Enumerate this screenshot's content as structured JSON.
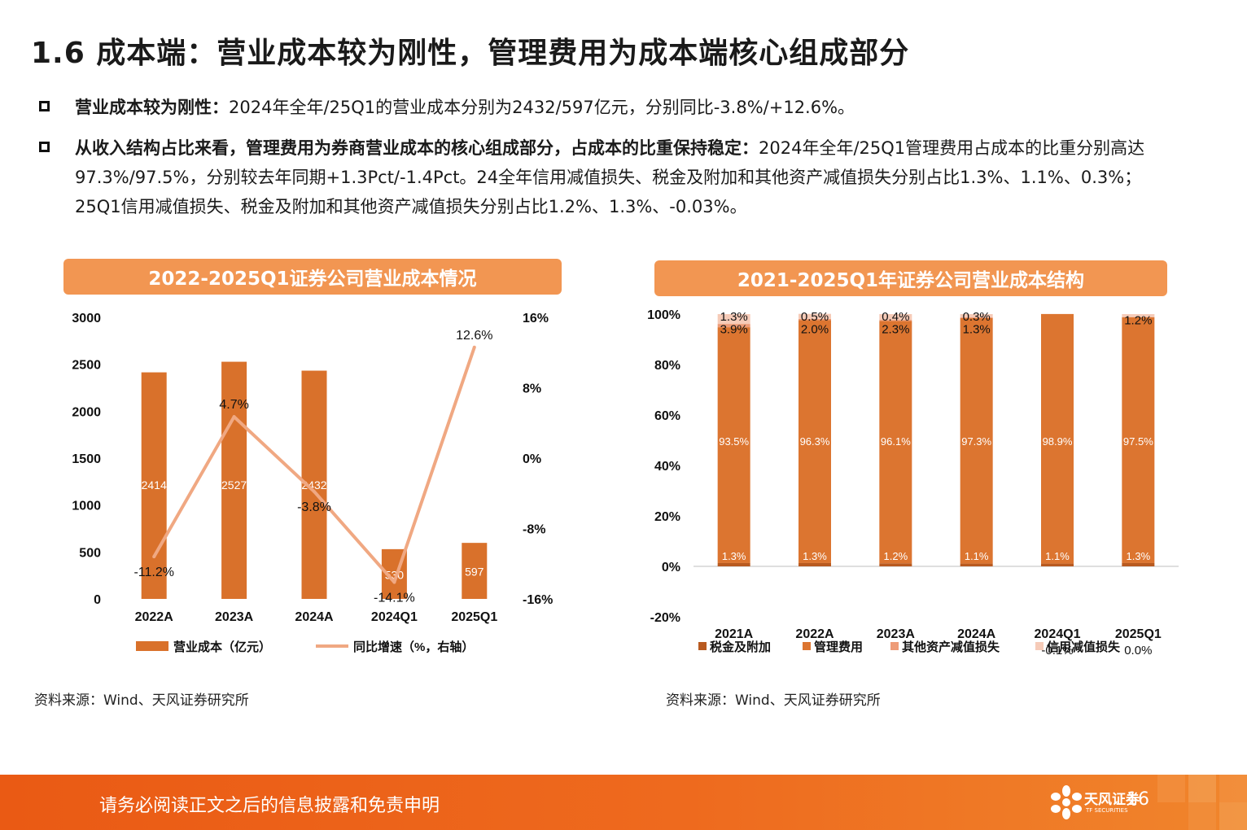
{
  "page": {
    "title": "1.6 成本端：营业成本较为刚性，管理费用为成本端核心组成部分",
    "bullets": [
      {
        "bold": "营业成本较为刚性：",
        "text": "2024年全年/25Q1的营业成本分别为2432/597亿元，分别同比-3.8%/+12.6%。"
      },
      {
        "bold": "从收入结构占比来看，管理费用为券商营业成本的核心组成部分，占成本的比重保持稳定：",
        "text": "2024年全年/25Q1管理费用占成本的比重分别高达97.3%/97.5%，分别较去年同期+1.3Pct/-1.4Pct。24全年信用减值损失、税金及附加和其他资产减值损失分别占比1.3%、1.1%、0.3%；25Q1信用减值损失、税金及附加和其他资产减值损失分别占比1.2%、1.3%、-0.03%。"
      }
    ],
    "source_left": "资料来源：Wind、天风证券研究所",
    "source_right": "资料来源：Wind、天风证券研究所",
    "footer_text": "请务必阅读正文之后的信息披露和免责申明",
    "brand": "天风证券",
    "brand_en": "TF SECURITIES",
    "page_number": "16",
    "colors": {
      "accent": "#f29652",
      "bar": "#d9712b",
      "line": "#f0a882",
      "tax": "#b85a20",
      "mgmt": "#dc7530",
      "other_asset": "#ee9c78",
      "credit": "#f6cbb8",
      "footer": "#ea5a14"
    }
  },
  "chart_data": [
    {
      "type": "bar",
      "title": "2022-2025Q1证券公司营业成本情况",
      "categories": [
        "2022A",
        "2023A",
        "2024A",
        "2024Q1",
        "2025Q1"
      ],
      "series": [
        {
          "name": "营业成本（亿元）",
          "type": "bar",
          "axis": "left",
          "values": [
            2414,
            2527,
            2432,
            530,
            597
          ],
          "labels": [
            "2414",
            "2527",
            "2432",
            "530",
            "597"
          ]
        },
        {
          "name": "同比增速（%，右轴）",
          "type": "line",
          "axis": "right",
          "values": [
            -11.2,
            4.7,
            -3.8,
            -14.1,
            12.6
          ],
          "labels": [
            "-11.2%",
            "4.7%",
            "-3.8%",
            "-14.1%",
            "12.6%"
          ]
        }
      ],
      "ylim": [
        0,
        3000
      ],
      "yticks": [
        "0",
        "500",
        "1000",
        "1500",
        "2000",
        "2500",
        "3000"
      ],
      "ylim_right": [
        -16,
        16
      ],
      "yticks_right": [
        "-16%",
        "-8%",
        "0%",
        "8%",
        "16%"
      ],
      "legend": "bottom"
    },
    {
      "type": "bar",
      "stacked": true,
      "title": "2021-2025Q1年证券公司营业成本结构",
      "categories": [
        "2021A",
        "2022A",
        "2023A",
        "2024A",
        "2024Q1",
        "2025Q1"
      ],
      "category_sublabels": [
        "",
        "",
        "",
        "",
        "-0.1%",
        "0.0%"
      ],
      "series": [
        {
          "name": "税金及附加",
          "values": [
            1.3,
            1.3,
            1.2,
            1.1,
            1.1,
            1.3
          ],
          "labels": [
            "1.3%",
            "1.3%",
            "1.2%",
            "1.1%",
            "1.1%",
            "1.3%"
          ]
        },
        {
          "name": "管理费用",
          "values": [
            93.5,
            96.3,
            96.1,
            97.3,
            98.9,
            97.5
          ],
          "labels": [
            "93.5%",
            "96.3%",
            "96.1%",
            "97.3%",
            "98.9%",
            "97.5%"
          ]
        },
        {
          "name": "其他资产减值损失",
          "values": [
            1.3,
            0.5,
            0.4,
            0.3,
            -0.1,
            0.0
          ],
          "labels": [
            "1.3%",
            "0.5%",
            "0.4%",
            "0.3%",
            "",
            ""
          ]
        },
        {
          "name": "信用减值损失",
          "values": [
            3.9,
            2.0,
            2.3,
            1.3,
            0.1,
            1.2
          ],
          "labels": [
            "3.9%",
            "2.0%",
            "2.3%",
            "1.3%",
            "",
            "1.2%"
          ]
        }
      ],
      "ylim": [
        -20,
        100
      ],
      "yticks": [
        "-20%",
        "0%",
        "20%",
        "40%",
        "60%",
        "80%",
        "100%"
      ],
      "legend": "bottom"
    }
  ]
}
